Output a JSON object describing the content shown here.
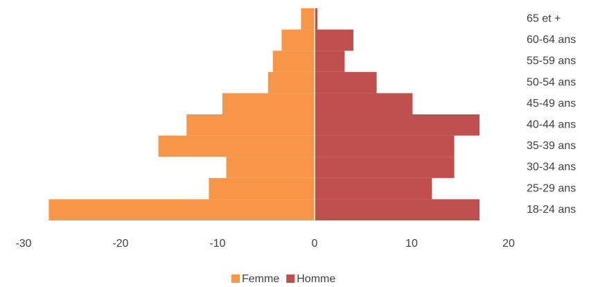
{
  "chart_data": {
    "type": "bar",
    "orientation": "horizontal",
    "stacked": true,
    "categories": [
      "18-24 ans",
      "25-29 ans",
      "30-34 ans",
      "35-39 ans",
      "40-44 ans",
      "45-49 ans",
      "50-54 ans",
      "55-59 ans",
      "60-64 ans",
      "65 et +"
    ],
    "series": [
      {
        "name": "Femme",
        "color": "#f79646",
        "values": [
          -27.4,
          -10.9,
          -9.1,
          -16.1,
          -13.2,
          -9.5,
          -4.8,
          -4.3,
          -3.4,
          -1.4
        ]
      },
      {
        "name": "Homme",
        "color": "#c0504d",
        "values": [
          17.0,
          12.1,
          14.4,
          14.4,
          17.0,
          10.1,
          6.4,
          3.1,
          4.0,
          0.3
        ]
      }
    ],
    "xlim": [
      -30,
      20
    ],
    "xticks": [
      -30,
      -20,
      -10,
      0,
      10,
      20
    ],
    "grid": false,
    "legend": "bottom"
  }
}
